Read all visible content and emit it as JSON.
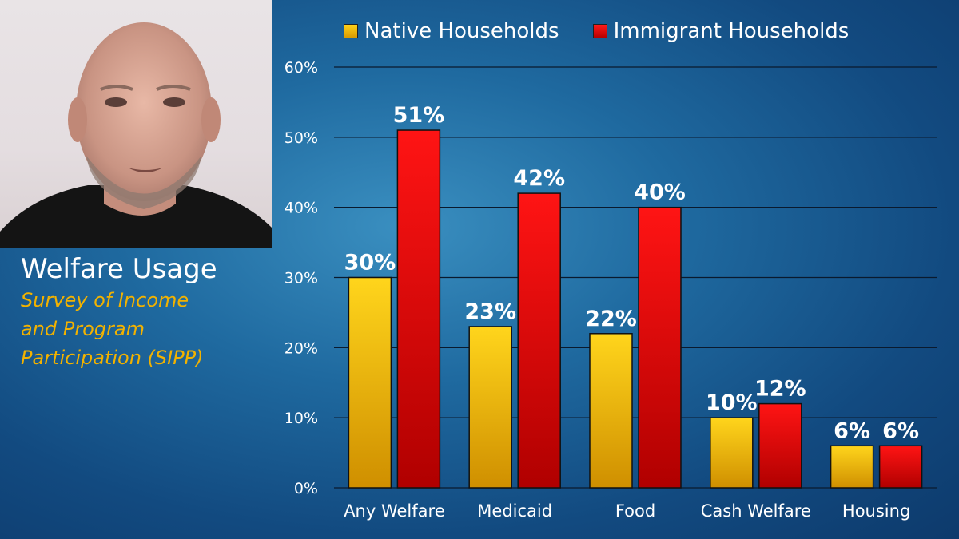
{
  "presenter": {
    "camera": "webcam-feed"
  },
  "slide": {
    "title": "Welfare Usage",
    "subtitle_lines": [
      "Survey of Income",
      "and Program",
      "Participation (SIPP)"
    ]
  },
  "chart_data": {
    "type": "bar",
    "categories": [
      "Any Welfare",
      "Medicaid",
      "Food",
      "Cash Welfare",
      "Housing"
    ],
    "series": [
      {
        "name": "Native Households",
        "values": [
          30,
          23,
          22,
          10,
          6
        ],
        "color": "#f5c000"
      },
      {
        "name": "Immigrant Households",
        "values": [
          51,
          42,
          40,
          12,
          6
        ],
        "color": "#e80000"
      }
    ],
    "ylim": [
      0,
      60
    ],
    "yticks": [
      0,
      10,
      20,
      30,
      40,
      50,
      60
    ],
    "tick_suffix": "%",
    "value_suffix": "%",
    "grid": true,
    "legend_position": "top"
  }
}
